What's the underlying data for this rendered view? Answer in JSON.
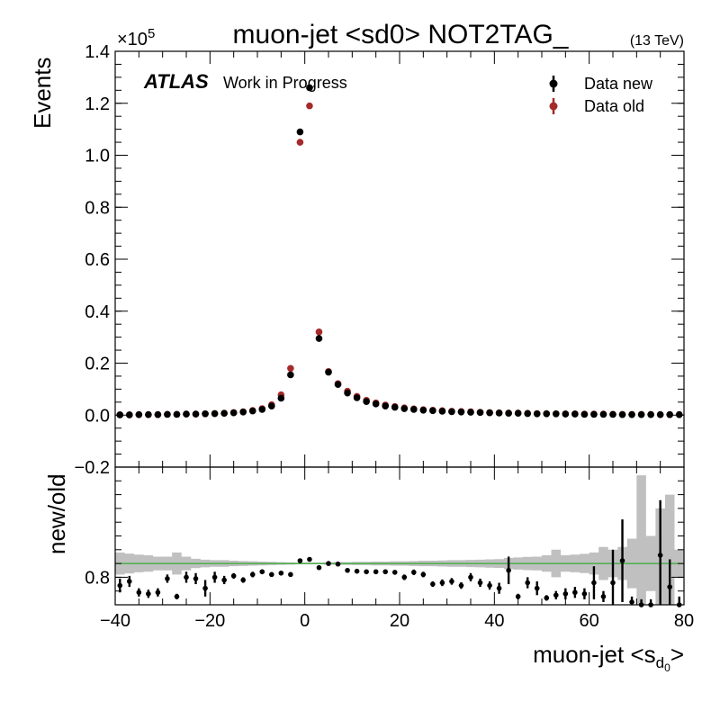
{
  "header": {
    "title": "muon-jet <sd0> NOT2TAG_",
    "energy": "(13 TeV)",
    "atlas": "ATLAS",
    "status": "Work in Progress",
    "scale_base": "×10",
    "scale_exp": "5"
  },
  "legend": {
    "items": [
      {
        "label": "Data new",
        "color": "#000000"
      },
      {
        "label": "Data old",
        "color": "#a52a2a"
      }
    ],
    "placement": "top-right"
  },
  "colors": {
    "data_new": "#000000",
    "data_old": "#a52a2a",
    "band": "#c0c0c0",
    "ref_line": "#33aa33"
  },
  "chart_data": [
    {
      "type": "scatter",
      "panel": "main",
      "ylabel": "Events",
      "xlim": [
        -40,
        80
      ],
      "ylim": [
        -0.2,
        1.4
      ],
      "y_scale_exponent": 5,
      "x_ticks": [
        -40,
        -20,
        0,
        20,
        40,
        60,
        80
      ],
      "y_ticks": [
        -0.2,
        0.0,
        0.2,
        0.4,
        0.6,
        0.8,
        1.0,
        1.2,
        1.4
      ],
      "y_tick_labels": [
        "−0.2",
        "0.0",
        "0.2",
        "0.4",
        "0.6",
        "0.8",
        "1.0",
        "1.2",
        "1.4"
      ],
      "series": [
        {
          "name": "Data new",
          "x": [
            -39,
            -37,
            -35,
            -33,
            -31,
            -29,
            -27,
            -25,
            -23,
            -21,
            -19,
            -17,
            -15,
            -13,
            -11,
            -9,
            -7,
            -5,
            -3,
            -1,
            1,
            3,
            5,
            7,
            9,
            11,
            13,
            15,
            17,
            19,
            21,
            23,
            25,
            27,
            29,
            31,
            33,
            35,
            37,
            39,
            41,
            43,
            45,
            47,
            49,
            51,
            53,
            55,
            57,
            59,
            61,
            63,
            65,
            67,
            69,
            71,
            73,
            75,
            77,
            79
          ],
          "y": [
            0.001,
            0.001,
            0.002,
            0.002,
            0.002,
            0.003,
            0.003,
            0.004,
            0.004,
            0.005,
            0.006,
            0.007,
            0.009,
            0.012,
            0.016,
            0.022,
            0.035,
            0.065,
            0.155,
            1.09,
            1.26,
            0.295,
            0.165,
            0.118,
            0.085,
            0.067,
            0.052,
            0.043,
            0.035,
            0.03,
            0.025,
            0.022,
            0.019,
            0.017,
            0.015,
            0.013,
            0.012,
            0.011,
            0.01,
            0.009,
            0.008,
            0.007,
            0.007,
            0.006,
            0.005,
            0.005,
            0.005,
            0.004,
            0.004,
            0.003,
            0.003,
            0.003,
            0.003,
            0.002,
            0.002,
            0.002,
            0.002,
            0.002,
            0.002,
            0.002
          ]
        },
        {
          "name": "Data old",
          "x": [
            -39,
            -37,
            -35,
            -33,
            -31,
            -29,
            -27,
            -25,
            -23,
            -21,
            -19,
            -17,
            -15,
            -13,
            -11,
            -9,
            -7,
            -5,
            -3,
            -1,
            1,
            3,
            5,
            7,
            9,
            11,
            13,
            15,
            17,
            19,
            21,
            23,
            25,
            27,
            29,
            31,
            33,
            35,
            37,
            39,
            41,
            43,
            45,
            47,
            49,
            51,
            53,
            55,
            57,
            59,
            61,
            63,
            65,
            67,
            69,
            71,
            73,
            75,
            77,
            79
          ],
          "y": [
            0.001,
            0.001,
            0.002,
            0.002,
            0.002,
            0.003,
            0.003,
            0.004,
            0.004,
            0.005,
            0.006,
            0.007,
            0.01,
            0.013,
            0.018,
            0.025,
            0.04,
            0.078,
            0.18,
            1.05,
            1.19,
            0.32,
            0.168,
            0.121,
            0.092,
            0.072,
            0.057,
            0.047,
            0.039,
            0.033,
            0.028,
            0.024,
            0.021,
            0.019,
            0.017,
            0.015,
            0.014,
            0.013,
            0.011,
            0.01,
            0.009,
            0.008,
            0.008,
            0.007,
            0.006,
            0.006,
            0.005,
            0.005,
            0.005,
            0.004,
            0.004,
            0.004,
            0.003,
            0.003,
            0.003,
            0.003,
            0.003,
            0.002,
            0.002,
            0.002
          ]
        }
      ]
    },
    {
      "type": "scatter",
      "panel": "ratio",
      "xlabel": "muon-jet <s",
      "xlabel_sub": "d",
      "xlabel_subsub": "0",
      "xlabel_end": ">",
      "ylabel": "new/old",
      "xlim": [
        -40,
        80
      ],
      "ylim": [
        0.7,
        1.2
      ],
      "y_ticks": [
        0.8
      ],
      "y_tick_labels": [
        "0.8"
      ],
      "reference": 0.85,
      "band": {
        "x_edges": [
          -40,
          -38,
          -36,
          -34,
          -32,
          -30,
          -28,
          -26,
          -24,
          -22,
          -20,
          -18,
          -16,
          -14,
          -12,
          -10,
          -8,
          -6,
          -4,
          -2,
          0,
          2,
          4,
          6,
          8,
          10,
          12,
          14,
          16,
          18,
          20,
          22,
          24,
          26,
          28,
          30,
          32,
          34,
          36,
          38,
          40,
          42,
          44,
          46,
          48,
          50,
          52,
          54,
          56,
          58,
          60,
          62,
          64,
          66,
          68,
          70,
          72,
          74,
          76,
          78,
          80
        ],
        "half_width": [
          0.04,
          0.036,
          0.032,
          0.03,
          0.025,
          0.025,
          0.04,
          0.025,
          0.017,
          0.014,
          0.012,
          0.012,
          0.01,
          0.009,
          0.008,
          0.007,
          0.006,
          0.005,
          0.004,
          0.003,
          0.003,
          0.003,
          0.004,
          0.005,
          0.005,
          0.006,
          0.006,
          0.007,
          0.007,
          0.008,
          0.008,
          0.009,
          0.01,
          0.01,
          0.011,
          0.012,
          0.012,
          0.013,
          0.014,
          0.015,
          0.016,
          0.02,
          0.022,
          0.024,
          0.025,
          0.03,
          0.05,
          0.03,
          0.032,
          0.035,
          0.04,
          0.06,
          0.05,
          0.06,
          0.09,
          0.32,
          0.1,
          0.2,
          0.25,
          0.05
        ]
      },
      "series": [
        {
          "name": "Data new",
          "x": [
            -39,
            -37,
            -35,
            -33,
            -31,
            -29,
            -27,
            -25,
            -23,
            -21,
            -19,
            -17,
            -15,
            -13,
            -11,
            -9,
            -7,
            -5,
            -3,
            -1,
            1,
            3,
            5,
            7,
            9,
            11,
            13,
            15,
            17,
            19,
            21,
            23,
            25,
            27,
            29,
            31,
            33,
            35,
            37,
            39,
            41,
            43,
            45,
            47,
            49,
            51,
            53,
            55,
            57,
            59,
            61,
            63,
            65,
            67,
            69,
            71,
            73,
            75,
            77,
            79
          ],
          "y": [
            0.77,
            0.785,
            0.745,
            0.74,
            0.745,
            0.795,
            0.73,
            0.8,
            0.795,
            0.76,
            0.8,
            0.79,
            0.805,
            0.79,
            0.81,
            0.82,
            0.81,
            0.815,
            0.81,
            0.86,
            0.865,
            0.835,
            0.85,
            0.848,
            0.825,
            0.822,
            0.82,
            0.82,
            0.82,
            0.818,
            0.8,
            0.818,
            0.81,
            0.775,
            0.78,
            0.785,
            0.77,
            0.8,
            0.78,
            0.77,
            0.76,
            0.825,
            0.73,
            0.78,
            0.76,
            0.725,
            0.735,
            0.74,
            0.745,
            0.74,
            0.78,
            0.73,
            0.78,
            0.86,
            0.71,
            0.7,
            0.7,
            0.88,
            0.765,
            0.7
          ],
          "err": [
            0.025,
            0.02,
            0.015,
            0.015,
            0.015,
            0.015,
            0.01,
            0.02,
            0.02,
            0.03,
            0.02,
            0.015,
            0.01,
            0.01,
            0.01,
            0.008,
            0.006,
            0.005,
            0.004,
            0.003,
            0.003,
            0.004,
            0.005,
            0.006,
            0.006,
            0.007,
            0.007,
            0.008,
            0.008,
            0.008,
            0.01,
            0.01,
            0.01,
            0.01,
            0.012,
            0.012,
            0.012,
            0.015,
            0.015,
            0.015,
            0.02,
            0.05,
            0.01,
            0.02,
            0.025,
            0.01,
            0.015,
            0.02,
            0.02,
            0.02,
            0.06,
            0.02,
            0.12,
            0.15,
            0.02,
            0.02,
            0.02,
            0.2,
            0.1,
            0.03
          ]
        }
      ]
    }
  ]
}
